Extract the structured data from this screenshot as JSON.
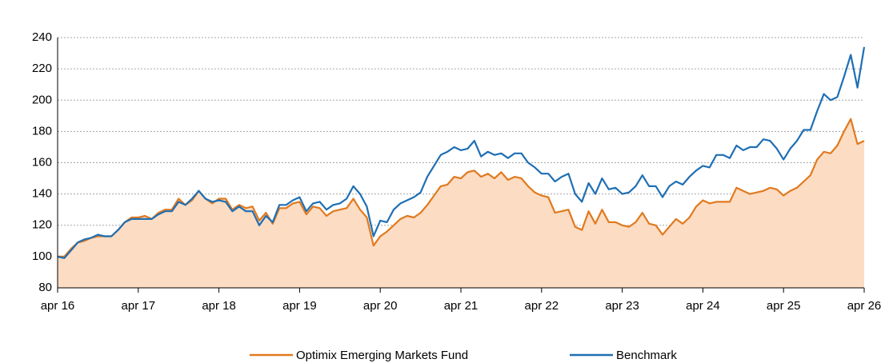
{
  "chart_data": {
    "type": "line",
    "categories": [
      "apr 16",
      null,
      null,
      null,
      null,
      null,
      null,
      null,
      null,
      null,
      null,
      null,
      "apr 17",
      null,
      null,
      null,
      null,
      null,
      null,
      null,
      null,
      null,
      null,
      null,
      "apr 18",
      null,
      null,
      null,
      null,
      null,
      null,
      null,
      null,
      null,
      null,
      null,
      "apr 19",
      null,
      null,
      null,
      null,
      null,
      null,
      null,
      null,
      null,
      null,
      null,
      "apr 20",
      null,
      null,
      null,
      null,
      null,
      null,
      null,
      null,
      null,
      null,
      null,
      "apr 21",
      null,
      null,
      null,
      null,
      null,
      null,
      null,
      null,
      null,
      null,
      null,
      "apr 22",
      null,
      null,
      null,
      null,
      null,
      null,
      null,
      null,
      null,
      null,
      null,
      "apr 23",
      null,
      null,
      null,
      null,
      null,
      null,
      null,
      null,
      null,
      null,
      null,
      "apr 24",
      null,
      null,
      null,
      null,
      null,
      null,
      null,
      null,
      null,
      null,
      null,
      "apr 25",
      null,
      null,
      null,
      null,
      null,
      null,
      null,
      null,
      null,
      null,
      null,
      "apr 26"
    ],
    "series": [
      {
        "name": "Optimix Emerging Markets Fund",
        "color": "#e07a1f",
        "fill": "#fcdcc3",
        "values": [
          100,
          100,
          105,
          109,
          110,
          112,
          113,
          113,
          113,
          117,
          122,
          125,
          125,
          126,
          124,
          128,
          130,
          130,
          137,
          133,
          136,
          142,
          137,
          134,
          137,
          137,
          130,
          133,
          131,
          132,
          123,
          128,
          121,
          131,
          131,
          134,
          135,
          127,
          132,
          131,
          126,
          129,
          130,
          131,
          137,
          130,
          125,
          107,
          113,
          116,
          120,
          124,
          126,
          125,
          128,
          133,
          139,
          145,
          146,
          151,
          150,
          154,
          155,
          151,
          153,
          150,
          154,
          149,
          151,
          150,
          145,
          141,
          139,
          138,
          128,
          129,
          130,
          119,
          117,
          129,
          121,
          130,
          122,
          122,
          120,
          119,
          122,
          128,
          121,
          120,
          114,
          119,
          124,
          121,
          125,
          132,
          136,
          134,
          135,
          135,
          135,
          144,
          142,
          140,
          141,
          142,
          144,
          143,
          139,
          142,
          144,
          148,
          152,
          162,
          167,
          166,
          171,
          180,
          188,
          172,
          174
        ]
      },
      {
        "name": "Benchmark",
        "color": "#1f6fb4",
        "values": [
          100,
          99,
          104,
          109,
          111,
          112,
          114,
          113,
          113,
          117,
          122,
          124,
          124,
          124,
          124,
          127,
          129,
          129,
          135,
          133,
          137,
          142,
          137,
          135,
          136,
          135,
          129,
          132,
          129,
          129,
          120,
          126,
          122,
          133,
          133,
          136,
          138,
          129,
          134,
          135,
          130,
          133,
          134,
          137,
          145,
          140,
          132,
          113,
          123,
          122,
          130,
          134,
          136,
          138,
          141,
          151,
          158,
          165,
          167,
          170,
          168,
          169,
          174,
          164,
          167,
          165,
          166,
          163,
          166,
          166,
          160,
          157,
          153,
          153,
          148,
          151,
          153,
          140,
          135,
          147,
          140,
          150,
          143,
          144,
          140,
          141,
          145,
          152,
          145,
          145,
          138,
          145,
          148,
          146,
          151,
          155,
          158,
          157,
          165,
          165,
          163,
          171,
          168,
          170,
          170,
          175,
          174,
          169,
          162,
          169,
          174,
          181,
          181,
          193,
          204,
          200,
          202,
          215,
          229,
          208,
          234
        ]
      }
    ],
    "ylim": [
      80,
      250
    ],
    "yticks": [
      80,
      100,
      120,
      140,
      160,
      180,
      200,
      220,
      240
    ],
    "grid": true,
    "legend": "bottom"
  }
}
